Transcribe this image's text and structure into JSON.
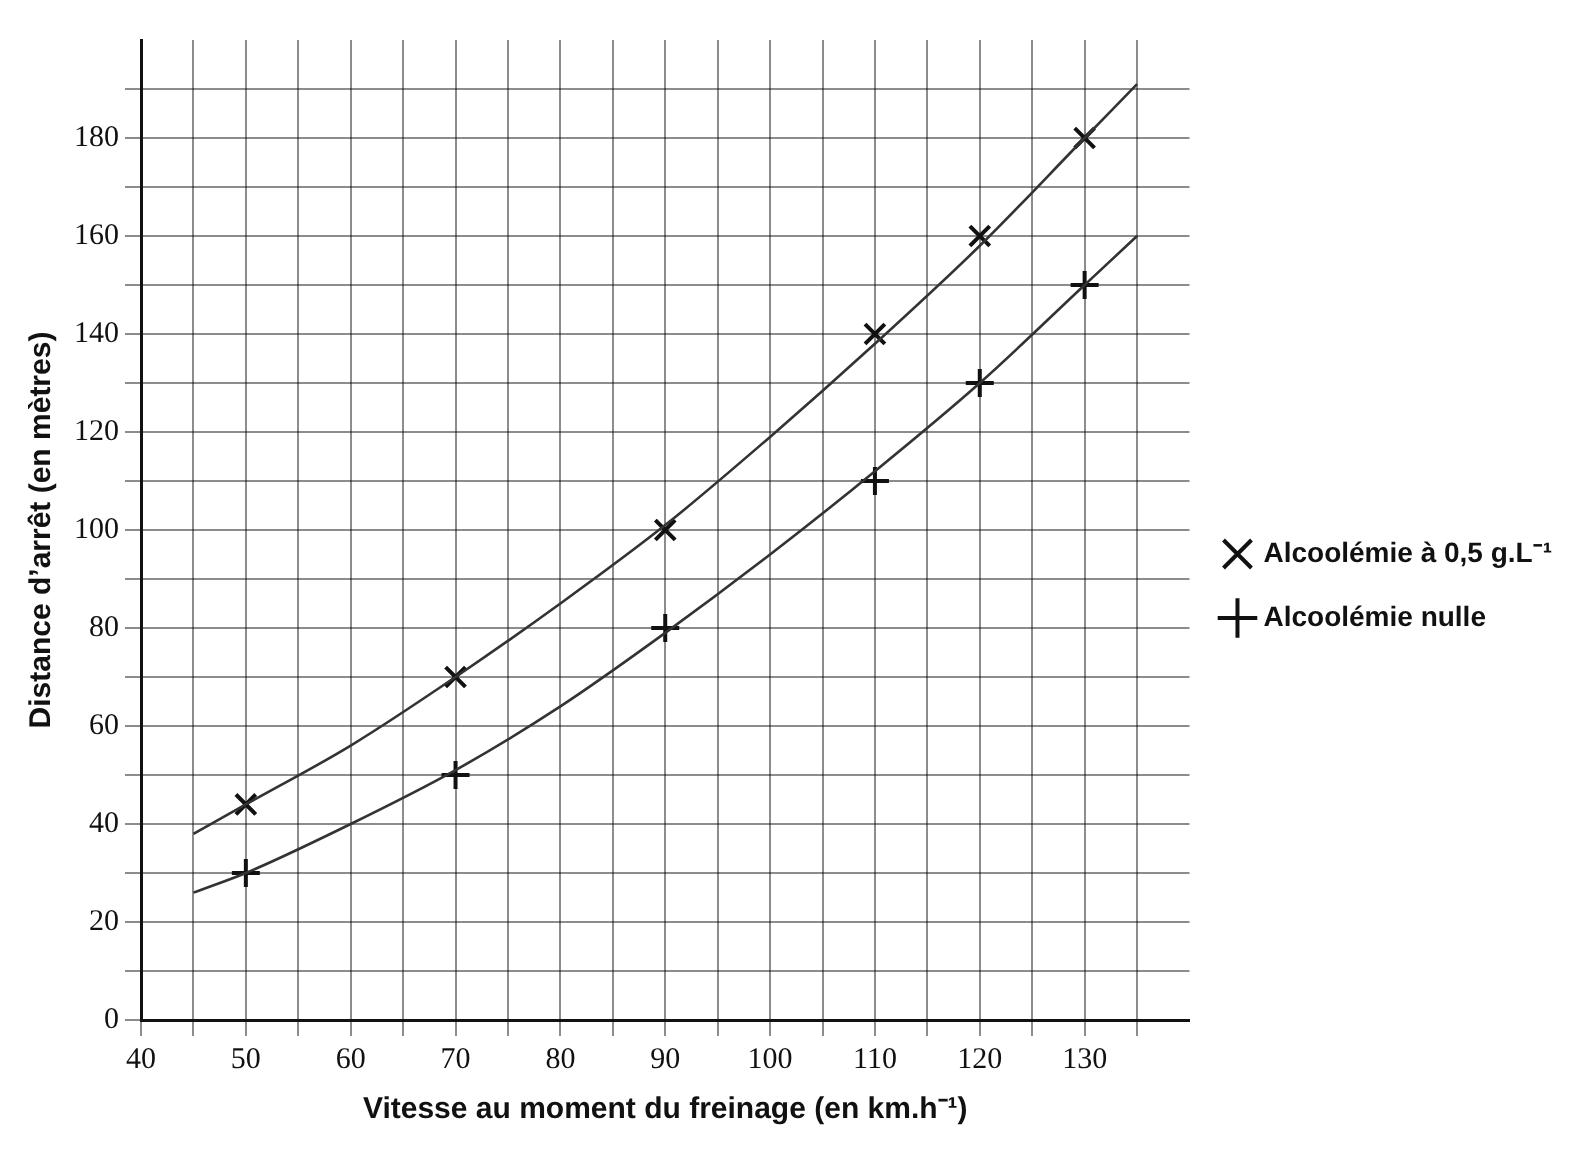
{
  "chart_data": {
    "type": "scatter",
    "xlabel": "Vitesse au moment du freinage (en km.h⁻¹)",
    "ylabel": "Distance d’arrêt (en mètres)",
    "xlim": [
      40,
      140
    ],
    "ylim": [
      0,
      200
    ],
    "xticks": [
      40,
      {
        "value": 45,
        "label": null
      },
      50,
      {
        "value": 55,
        "label": null
      },
      60,
      {
        "value": 65,
        "label": null
      },
      70,
      {
        "value": 75,
        "label": null
      },
      80,
      {
        "value": 85,
        "label": null
      },
      90,
      {
        "value": 95,
        "label": null
      },
      100,
      {
        "value": 105,
        "label": null
      },
      110,
      {
        "value": 115,
        "label": null
      },
      120,
      {
        "value": 125,
        "label": null
      },
      130,
      {
        "value": 135,
        "label": null
      }
    ],
    "yticks": [
      0,
      {
        "value": 10,
        "label": null
      },
      20,
      {
        "value": 30,
        "label": null
      },
      40,
      {
        "value": 50,
        "label": null
      },
      60,
      {
        "value": 70,
        "label": null
      },
      80,
      {
        "value": 90,
        "label": null
      },
      100,
      {
        "value": 110,
        "label": null
      },
      120,
      {
        "value": 130,
        "label": null
      },
      140,
      {
        "value": 150,
        "label": null
      },
      160,
      {
        "value": 170,
        "label": null
      },
      180,
      {
        "value": 190,
        "label": null
      }
    ],
    "grid": true,
    "legend": "right",
    "series": [
      {
        "type": "line",
        "color": "#333333",
        "marker": "none",
        "x": [
          45,
          50,
          60,
          70,
          80,
          90,
          100,
          110,
          120,
          130,
          135
        ],
        "values": [
          38,
          44,
          56,
          70,
          85,
          101,
          119,
          138,
          158,
          180,
          191
        ]
      },
      {
        "type": "line",
        "color": "#333333",
        "marker": "none",
        "x": [
          45,
          50,
          60,
          70,
          80,
          90,
          100,
          110,
          120,
          130,
          135
        ],
        "values": [
          26,
          30,
          40,
          51,
          64,
          79,
          95,
          112,
          130,
          150,
          160
        ]
      },
      {
        "type": "scatter",
        "name": "Alcoolémie à 0,5 g.L⁻¹",
        "color": "#111111",
        "marker": "x",
        "x": [
          50,
          70,
          90,
          110,
          120,
          130
        ],
        "values": [
          44,
          70,
          100,
          140,
          160,
          180
        ]
      },
      {
        "type": "scatter",
        "name": "Alcoolémie nulle",
        "color": "#111111",
        "marker": "cross",
        "x": [
          50,
          70,
          90,
          110,
          120,
          130
        ],
        "values": [
          30,
          50,
          80,
          110,
          130,
          150
        ]
      }
    ]
  }
}
